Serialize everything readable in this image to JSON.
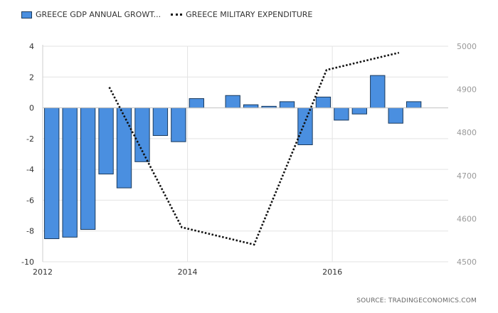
{
  "legend": {
    "bar_label": "GREECE GDP ANNUAL GROWT...",
    "line_label": "GREECE MILITARY EXPENDITURE"
  },
  "source": "SOURCE: TRADINGECONOMICS.COM",
  "colors": {
    "bar": "#4a8fe0",
    "bar_border": "#1b3a5c",
    "line": "#111111",
    "grid": "#e3e3e3"
  },
  "chart_data": {
    "type": "bar",
    "x_axis": {
      "min": 2012.0,
      "max": 2017.6,
      "ticks": [
        2012,
        2014,
        2016
      ],
      "tick_labels": [
        "2012",
        "2014",
        "2016"
      ]
    },
    "y_left": {
      "min": -10,
      "max": 4,
      "ticks": [
        -10,
        -8,
        -6,
        -4,
        -2,
        0,
        2,
        4
      ],
      "tick_labels": [
        "-10",
        "-8",
        "-6",
        "-4",
        "-2",
        "0",
        "2",
        "4"
      ]
    },
    "y_right": {
      "min": 4500,
      "max": 5000,
      "ticks": [
        4500,
        4600,
        4700,
        4800,
        4900,
        5000
      ],
      "tick_labels": [
        "4500",
        "4600",
        "4700",
        "4800",
        "4900",
        "5000"
      ]
    },
    "grid": true,
    "legend_position": "top-left",
    "series": [
      {
        "name": "GREECE GDP ANNUAL GROWT...",
        "type": "bar",
        "axis": "left",
        "x": [
          "2012-Q1",
          "2012-Q2",
          "2012-Q3",
          "2012-Q4",
          "2013-Q1",
          "2013-Q2",
          "2013-Q3",
          "2013-Q4",
          "2014-Q1",
          "2014-Q2",
          "2014-Q3",
          "2014-Q4",
          "2015-Q1",
          "2015-Q2",
          "2015-Q3",
          "2015-Q4",
          "2016-Q1",
          "2016-Q2",
          "2016-Q3",
          "2016-Q4",
          "2017-Q1",
          "2017-Q2"
        ],
        "values": [
          -8.5,
          -8.4,
          -7.9,
          -4.3,
          -5.2,
          -3.5,
          -1.8,
          -2.2,
          0.6,
          0.0,
          0.8,
          0.2,
          0.1,
          0.4,
          -2.4,
          0.7,
          -0.8,
          -0.4,
          2.1,
          -1.0,
          0.4,
          0.0
        ]
      },
      {
        "name": "GREECE MILITARY EXPENDITURE",
        "type": "line",
        "axis": "right",
        "x": [
          "2012",
          "2013",
          "2014",
          "2015",
          "2016"
        ],
        "values": [
          4905,
          4580,
          4540,
          4945,
          4985
        ]
      }
    ]
  }
}
